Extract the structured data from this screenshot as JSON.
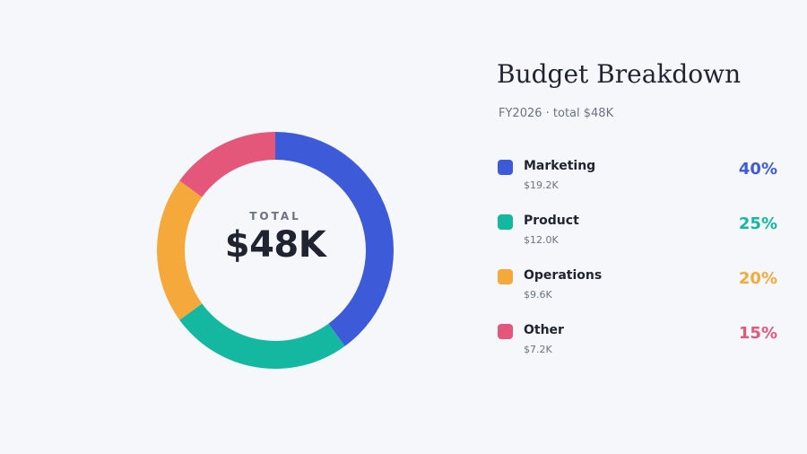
{
  "chart_data": {
    "type": "pie",
    "title": "Budget Breakdown",
    "subtitle": "FY2026 · total $48K",
    "center_label": "TOTAL",
    "center_value": "$48K",
    "slices": [
      {
        "label": "Marketing",
        "percent": 40,
        "percent_text": "40%",
        "amount": "$19.2K",
        "value": 19.2,
        "color": "#3d5bd9"
      },
      {
        "label": "Product",
        "percent": 25,
        "percent_text": "25%",
        "amount": "$12.0K",
        "value": 12.0,
        "color": "#14b8a0"
      },
      {
        "label": "Operations",
        "percent": 20,
        "percent_text": "20%",
        "amount": "$9.6K",
        "value": 9.6,
        "color": "#f5a93a"
      },
      {
        "label": "Other",
        "percent": 15,
        "percent_text": "15%",
        "amount": "$7.2K",
        "value": 7.2,
        "color": "#e5577a"
      }
    ],
    "legend_position": "right"
  }
}
